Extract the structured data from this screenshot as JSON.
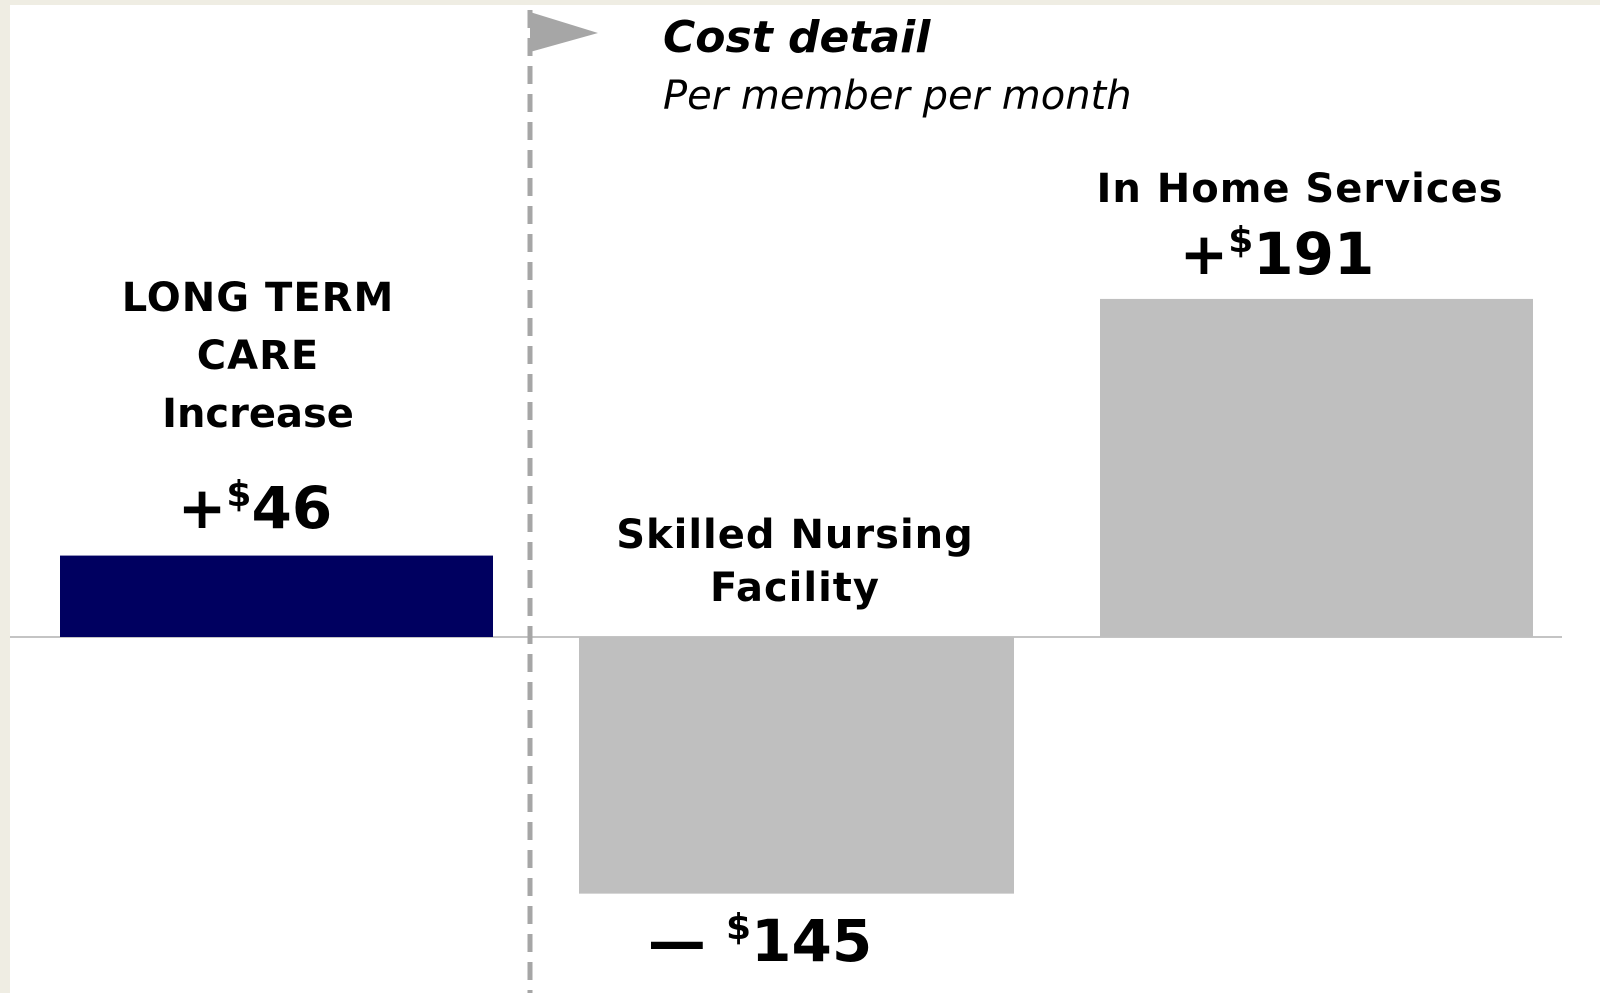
{
  "chart_data": {
    "type": "bar",
    "title": "Cost detail",
    "subtitle": "Per member per month",
    "categories": [
      [
        "LONG TERM",
        "CARE"
      ],
      [
        "Skilled Nursing",
        "Facility"
      ],
      [
        "In Home Services"
      ]
    ],
    "annotation": "Increase",
    "values": [
      46,
      -145,
      191
    ],
    "value_labels": [
      "+$46",
      "— $145",
      "+$191"
    ],
    "colors": [
      "#000060",
      "#bfbfbf",
      "#bfbfbf"
    ],
    "category_colors": [
      "#9c4f0f",
      "#000000",
      "#000000"
    ]
  }
}
